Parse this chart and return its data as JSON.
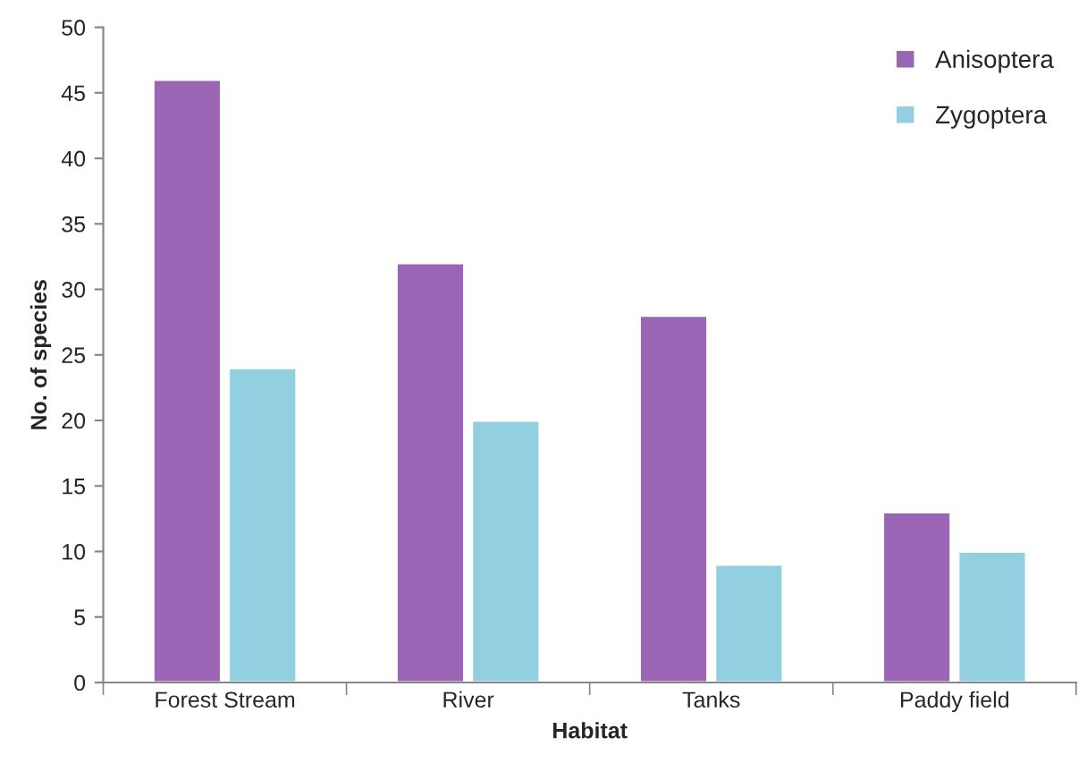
{
  "chart_data": {
    "type": "bar",
    "xlabel": "Habitat",
    "ylabel": "No. of species",
    "categories": [
      "Forest Stream",
      "River",
      "Tanks",
      "Paddy field"
    ],
    "series": [
      {
        "name": "Anisoptera",
        "color": "#9b65b5",
        "values": [
          46,
          32,
          28,
          13
        ]
      },
      {
        "name": "Zygoptera",
        "color": "#92cfe0",
        "values": [
          24,
          20,
          9,
          10
        ]
      }
    ],
    "ylim": [
      0,
      50
    ],
    "yticks": [
      0,
      5,
      10,
      15,
      20,
      25,
      30,
      35,
      40,
      45,
      50
    ],
    "grid": false,
    "legend": "top right"
  }
}
